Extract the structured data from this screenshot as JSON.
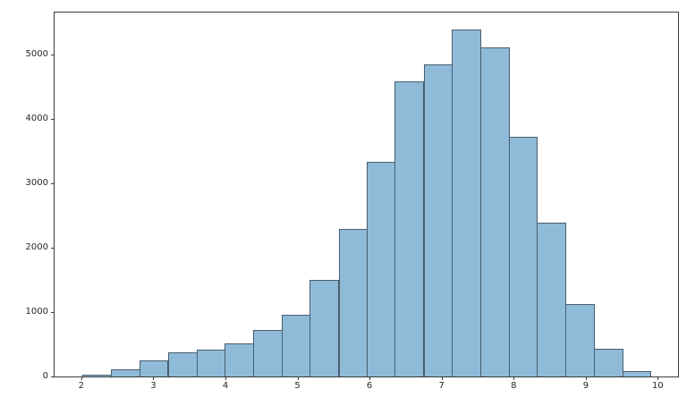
{
  "figure": {
    "background": "#ffffff",
    "frame_color": "#3a3a3a",
    "tick_label_color": "#262626"
  },
  "chart_data": {
    "type": "bar",
    "subtype": "histogram",
    "title": "",
    "xlabel": "",
    "ylabel": "",
    "bin_edges": [
      2.02,
      2.41,
      2.81,
      3.2,
      3.6,
      3.99,
      4.38,
      4.78,
      5.17,
      5.57,
      5.96,
      6.35,
      6.75,
      7.14,
      7.54,
      7.93,
      8.32,
      8.72,
      9.11,
      9.51,
      9.9
    ],
    "counts": [
      25,
      115,
      250,
      370,
      420,
      515,
      730,
      965,
      1505,
      2290,
      3335,
      4590,
      4845,
      5390,
      5115,
      3730,
      2395,
      1130,
      425,
      80
    ],
    "x_ticks": [
      2,
      3,
      4,
      5,
      6,
      7,
      8,
      9,
      10
    ],
    "y_ticks": [
      0,
      1000,
      2000,
      3000,
      4000,
      5000
    ],
    "xlim": [
      1.63,
      10.28
    ],
    "ylim": [
      0,
      5657
    ],
    "grid": false,
    "bar_fill": "#8fbbd9",
    "bar_edge": "#485e6d"
  }
}
